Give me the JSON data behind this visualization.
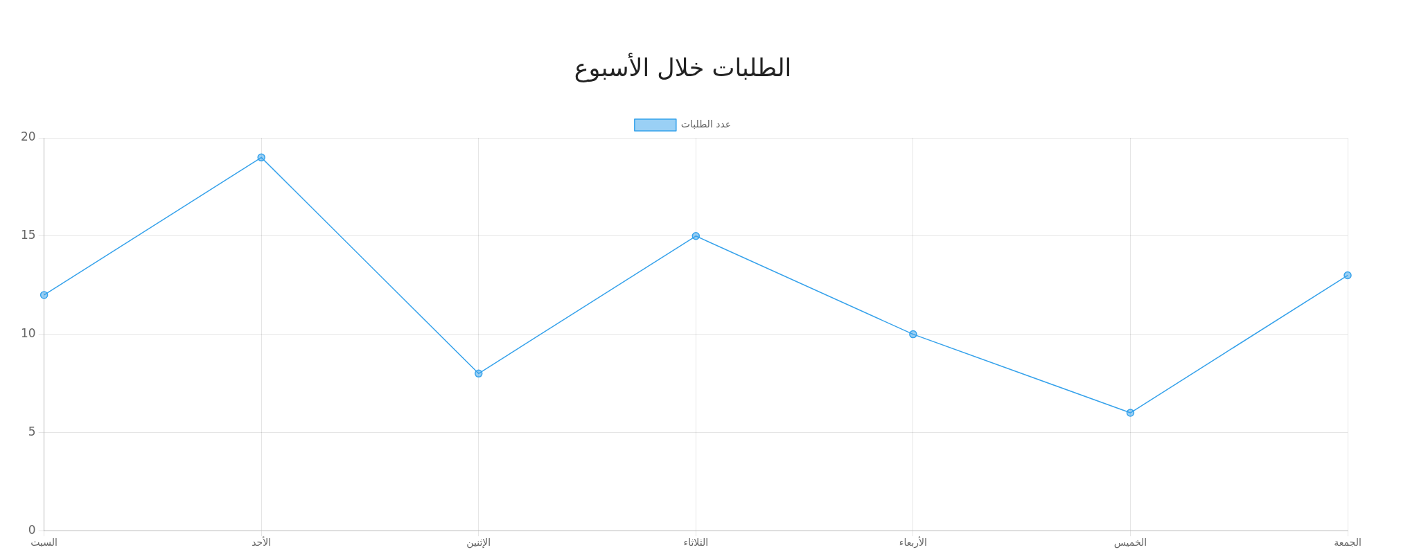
{
  "chart_data": {
    "type": "line",
    "title": "الطلبات خلال الأسبوع",
    "categories": [
      "السبت",
      "الأحد",
      "الإثنين",
      "الثلاثاء",
      "الأربعاء",
      "الخميس",
      "الجمعة"
    ],
    "series": [
      {
        "name": "عدد الطلبات",
        "color": "#36a2eb",
        "values": [
          12,
          19,
          8,
          15,
          10,
          6,
          13
        ]
      }
    ],
    "ylim": [
      0,
      20
    ],
    "yticks": [
      0,
      5,
      10,
      15,
      20
    ],
    "grid": true,
    "legend": "top",
    "marker": "circle",
    "line_style": "solid"
  }
}
